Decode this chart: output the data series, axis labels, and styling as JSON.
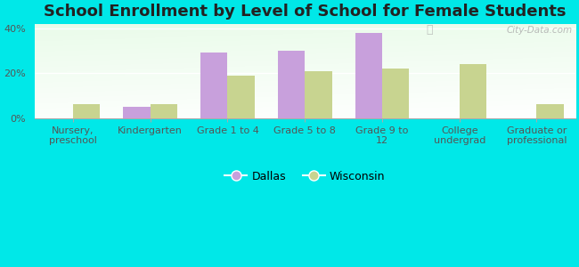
{
  "title": "School Enrollment by Level of School for Female Students",
  "categories": [
    "Nursery,\npreschool",
    "Kindergarten",
    "Grade 1 to 4",
    "Grade 5 to 8",
    "Grade 9 to\n12",
    "College\nundergrad",
    "Graduate or\nprofessional"
  ],
  "dallas": [
    0,
    5,
    29,
    30,
    38,
    0,
    0
  ],
  "wisconsin": [
    6,
    6,
    19,
    21,
    22,
    24,
    6
  ],
  "dallas_color": "#c8a0dc",
  "wisconsin_color": "#c8d490",
  "bg_color": "#00e8e8",
  "ylim": [
    0,
    42
  ],
  "yticks": [
    0,
    20,
    40
  ],
  "ytick_labels": [
    "0%",
    "20%",
    "40%"
  ],
  "bar_width": 0.35,
  "title_fontsize": 13,
  "tick_fontsize": 8,
  "legend_fontsize": 9,
  "watermark": "City-Data.com"
}
